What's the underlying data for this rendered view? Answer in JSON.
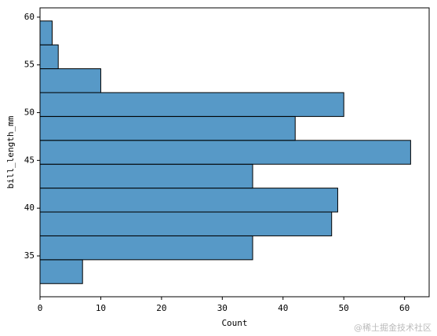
{
  "chart_data": {
    "type": "histogram",
    "orientation": "horizontal",
    "xlabel": "Count",
    "ylabel": "bill_length_mm",
    "bins": [
      32.1,
      34.6,
      37.1,
      39.6,
      42.1,
      44.6,
      47.1,
      49.6,
      52.1,
      54.6,
      57.1,
      59.6
    ],
    "values": [
      7,
      35,
      48,
      49,
      35,
      61,
      42,
      50,
      10,
      3,
      2
    ],
    "color": "#1f77b4",
    "opacity": 0.75,
    "xlim": [
      0,
      64.05
    ],
    "xticks": [
      0,
      10,
      20,
      30,
      40,
      50,
      60
    ],
    "ylim": [
      30.725,
      60.975
    ],
    "yticks": [
      35,
      40,
      45,
      50,
      55,
      60
    ],
    "watermark": "@稀土掘金技术社区"
  }
}
